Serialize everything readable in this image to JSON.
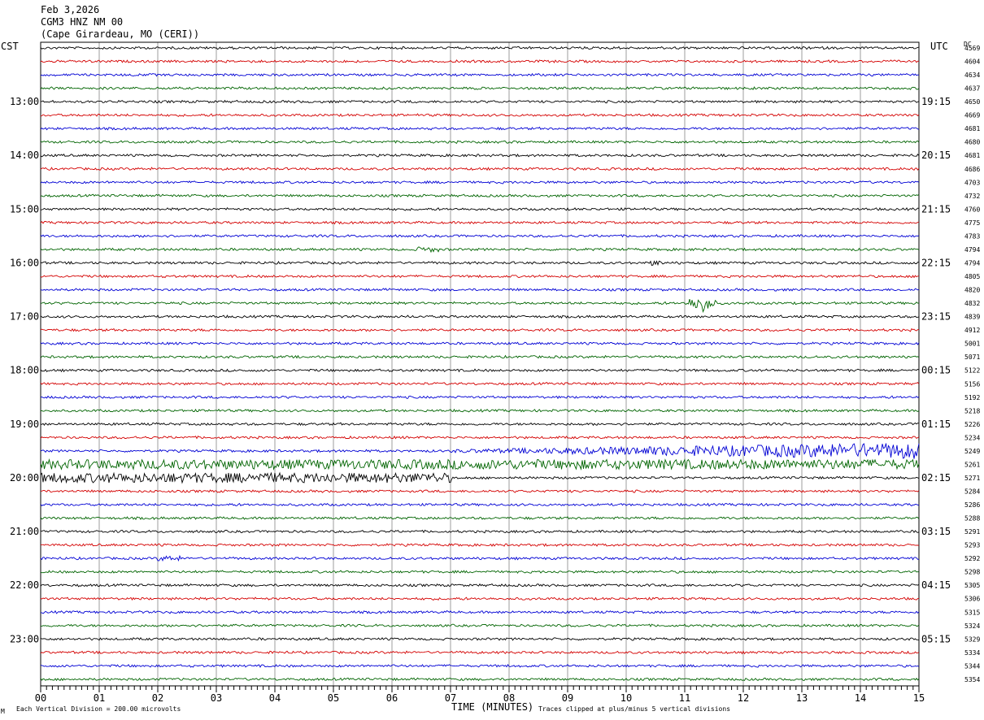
{
  "header": {
    "date": "Feb 3,2026",
    "station": "CGM3 HNZ NM 00",
    "location": "(Cape Girardeau, MO (CERI))",
    "left_zone": "CST",
    "right_zone": "UTC",
    "dc_label": "DC"
  },
  "footer": {
    "scale_note": "Each Vertical Division =  200.00 microvolts",
    "clip_note": "Traces clipped at plus/minus 5 vertical divisions",
    "mark": "M"
  },
  "chart_data": {
    "type": "line",
    "title": "",
    "xlabel": "TIME (MINUTES)",
    "ylabel": "",
    "xlim": [
      0,
      15
    ],
    "x_ticks": [
      "00",
      "01",
      "02",
      "03",
      "04",
      "05",
      "06",
      "07",
      "08",
      "09",
      "10",
      "11",
      "12",
      "13",
      "14",
      "15"
    ],
    "left_time_labels": [
      "13:00",
      "14:00",
      "15:00",
      "16:00",
      "17:00",
      "18:00",
      "19:00",
      "20:00",
      "21:00",
      "22:00",
      "23:00"
    ],
    "right_time_labels": [
      "19:15",
      "20:15",
      "21:15",
      "22:15",
      "23:15",
      "00:15",
      "01:15",
      "02:15",
      "03:15",
      "04:15",
      "05:15"
    ],
    "trace_colors": [
      "#000000",
      "#d40000",
      "#0000d4",
      "#006400"
    ],
    "dc_offsets": [
      4569,
      4604,
      4634,
      4637,
      4650,
      4669,
      4681,
      4680,
      4681,
      4686,
      4703,
      4732,
      4760,
      4775,
      4783,
      4794,
      4794,
      4805,
      4820,
      4832,
      4839,
      4912,
      5001,
      5071,
      5122,
      5156,
      5192,
      5218,
      5226,
      5234,
      5249,
      5261,
      5271,
      5284,
      5286,
      5288,
      5291,
      5293,
      5292,
      5298,
      5305,
      5306,
      5315,
      5324,
      5329,
      5334,
      5344,
      5354
    ],
    "traces_per_hour": 4,
    "first_labeled_trace": 4,
    "events": [
      {
        "trace": 19,
        "start_min": 11.0,
        "end_min": 11.55,
        "amplitude": "large"
      },
      {
        "trace": 15,
        "start_min": 6.4,
        "end_min": 6.8,
        "amplitude": "small"
      },
      {
        "trace": 30,
        "start_min": 7.0,
        "end_min": 15.0,
        "amplitude": "growing noise"
      },
      {
        "trace": 31,
        "start_min": 0.0,
        "end_min": 15.0,
        "amplitude": "high noise"
      },
      {
        "trace": 32,
        "start_min": 0.0,
        "end_min": 7.0,
        "amplitude": "high noise"
      },
      {
        "trace": 38,
        "start_min": 2.0,
        "end_min": 2.4,
        "amplitude": "small"
      },
      {
        "trace": 16,
        "start_min": 10.4,
        "end_min": 10.6,
        "amplitude": "small"
      }
    ]
  }
}
